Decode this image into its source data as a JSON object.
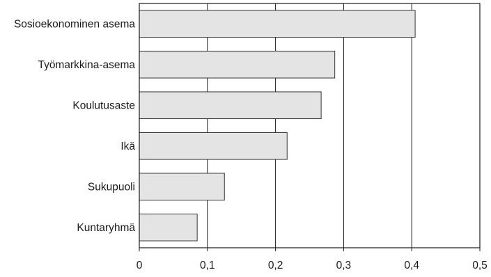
{
  "colors": {
    "bar_fill": "#e4e4e4",
    "bar_stroke": "#333333",
    "axis": "#1a1a1a"
  },
  "chart_data": {
    "type": "bar",
    "orientation": "horizontal",
    "categories": [
      "Sosioekonominen asema",
      "Työmarkkina-asema",
      "Koulutusaste",
      "Ikä",
      "Sukupuoli",
      "Kuntaryhmä"
    ],
    "values": [
      0.405,
      0.287,
      0.267,
      0.217,
      0.125,
      0.085
    ],
    "xlim": [
      0,
      0.5
    ],
    "xticks": [
      0,
      0.1,
      0.2,
      0.3,
      0.4,
      0.5
    ],
    "xtick_labels": [
      "0",
      "0,1",
      "0,2",
      "0,3",
      "0,4",
      "0,5"
    ],
    "grid": "vertical",
    "legend": "none",
    "title": "",
    "xlabel": "",
    "ylabel": ""
  }
}
